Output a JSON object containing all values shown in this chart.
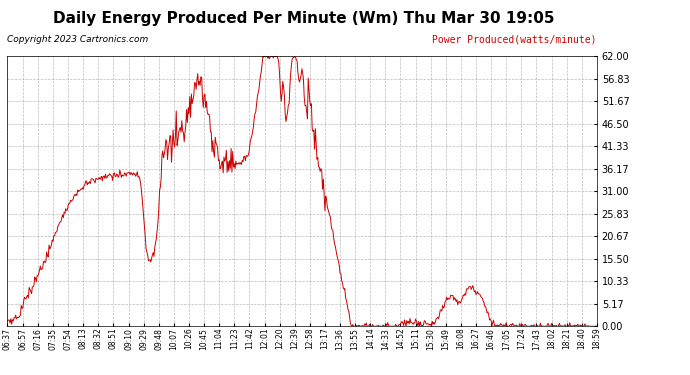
{
  "title": "Daily Energy Produced Per Minute (Wm) Thu Mar 30 19:05",
  "copyright": "Copyright 2023 Cartronics.com",
  "legend_label": "Power Produced(watts/minute)",
  "legend_color": "#cc0000",
  "title_fontsize": 11,
  "line_color": "#cc0000",
  "bg_color": "#ffffff",
  "grid_color": "#aaaaaa",
  "ymin": 0.0,
  "ymax": 62.0,
  "yticks": [
    0.0,
    5.17,
    10.33,
    15.5,
    20.67,
    25.83,
    31.0,
    36.17,
    41.33,
    46.5,
    51.67,
    56.83,
    62.0
  ],
  "xtick_labels": [
    "06:37",
    "06:57",
    "07:16",
    "07:35",
    "07:54",
    "08:13",
    "08:32",
    "08:51",
    "09:10",
    "09:29",
    "09:48",
    "10:07",
    "10:26",
    "10:45",
    "11:04",
    "11:23",
    "11:42",
    "12:01",
    "12:20",
    "12:39",
    "12:58",
    "13:17",
    "13:36",
    "13:55",
    "14:14",
    "14:33",
    "14:52",
    "15:11",
    "15:30",
    "15:49",
    "16:08",
    "16:27",
    "16:46",
    "17:05",
    "17:24",
    "17:43",
    "18:02",
    "18:21",
    "18:40",
    "18:59"
  ],
  "time_start": "06:37",
  "time_end": "18:59"
}
